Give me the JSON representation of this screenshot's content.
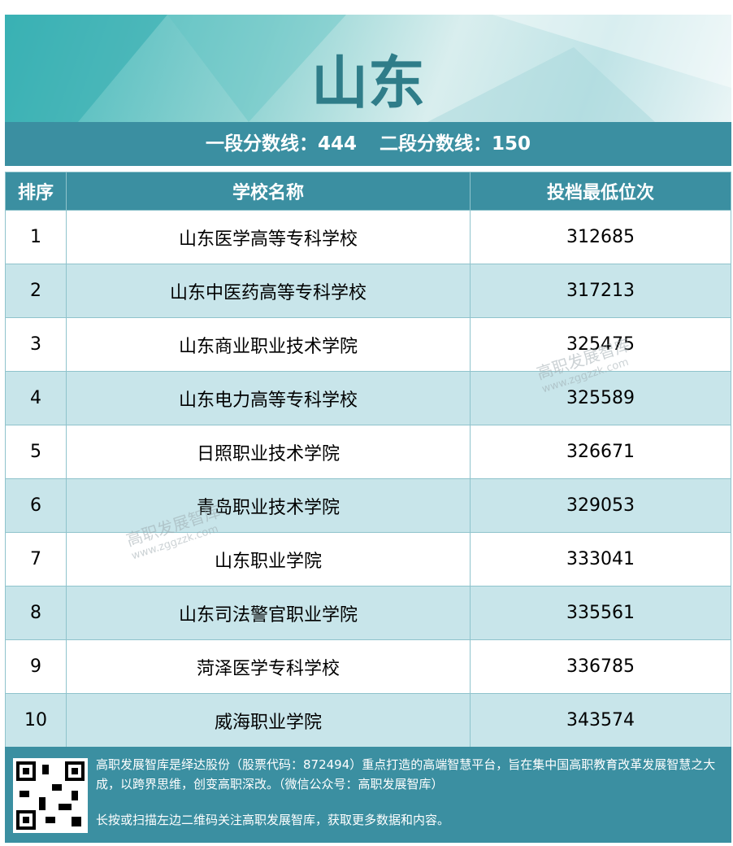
{
  "header": {
    "title": "山东",
    "cutoffs": [
      {
        "label": "一段分数线：",
        "value": 444
      },
      {
        "label": "二段分数线：",
        "value": 150
      }
    ]
  },
  "table": {
    "columns": [
      "排序",
      "学校名称",
      "投档最低位次"
    ],
    "rows": [
      [
        1,
        "山东医学高等专科学校",
        312685
      ],
      [
        2,
        "山东中医药高等专科学校",
        317213
      ],
      [
        3,
        "山东商业职业技术学院",
        325475
      ],
      [
        4,
        "山东电力高等专科学校",
        325589
      ],
      [
        5,
        "日照职业技术学院",
        326671
      ],
      [
        6,
        "青岛职业技术学院",
        329053
      ],
      [
        7,
        "山东职业学院",
        333041
      ],
      [
        8,
        "山东司法警官职业学院",
        335561
      ],
      [
        9,
        "菏泽医学专科学校",
        336785
      ],
      [
        10,
        "威海职业学院",
        343574
      ]
    ]
  },
  "watermark": {
    "name": "高职发展智库",
    "url": "www.zggzzk.com"
  },
  "footer": {
    "intro": "高职发展智库是绎达股份（股票代码：872494）重点打造的高端智慧平台，旨在集中国高职教育改革发展智慧之大成，以跨界思维，创变高职深改。（微信公众号：高职发展智库）",
    "cta": "长按或扫描左边二维码关注高职发展智库，获取更多数据和内容。"
  }
}
